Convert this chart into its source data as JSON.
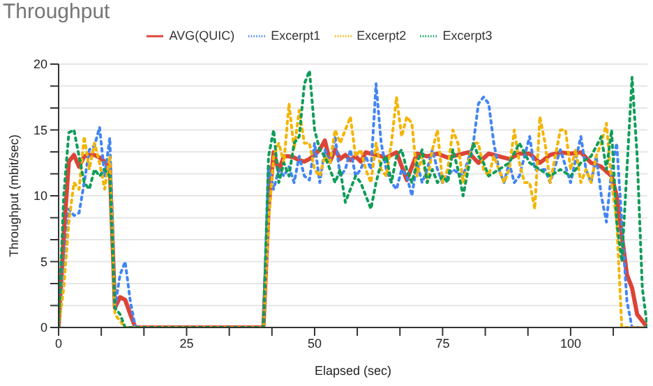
{
  "chart_data": {
    "type": "line",
    "title": "Throughput",
    "xlabel": "Elapsed (sec)",
    "ylabel": "Throughput (mbit/sec)",
    "xlim": [
      0,
      115
    ],
    "ylim": [
      0,
      20
    ],
    "xticks": [
      0,
      {
        "value": 8.333,
        "label": null
      },
      {
        "value": 16.667,
        "label": null
      },
      25,
      {
        "value": 33.333,
        "label": null
      },
      {
        "value": 41.667,
        "label": null
      },
      50,
      {
        "value": 58.333,
        "label": null
      },
      {
        "value": 66.667,
        "label": null
      },
      75,
      {
        "value": 83.333,
        "label": null
      },
      {
        "value": 91.667,
        "label": null
      },
      100,
      {
        "value": 108.333,
        "label": null
      }
    ],
    "yticks": [
      0,
      {
        "value": 1.667,
        "label": null
      },
      {
        "value": 3.333,
        "label": null
      },
      5,
      {
        "value": 6.667,
        "label": null
      },
      {
        "value": 8.333,
        "label": null
      },
      10,
      {
        "value": 11.667,
        "label": null
      },
      {
        "value": 13.333,
        "label": null
      },
      15,
      {
        "value": 16.667,
        "label": null
      },
      {
        "value": 18.333,
        "label": null
      },
      20
    ],
    "grid": "y",
    "legend": "top",
    "marker": "none",
    "series": [
      {
        "name": "AVG(QUIC)",
        "color": "#db4437",
        "line_style": "solid",
        "x": [
          0,
          1,
          2,
          3,
          4,
          5,
          6,
          7,
          8,
          9,
          10,
          11,
          12,
          13,
          14,
          15,
          40,
          41,
          42,
          43,
          44,
          45,
          46,
          47,
          48,
          49,
          50,
          51,
          52,
          53,
          54,
          55,
          56,
          57,
          58,
          59,
          60,
          62,
          64,
          66,
          68,
          70,
          72,
          74,
          76,
          78,
          80,
          82,
          84,
          86,
          88,
          90,
          92,
          94,
          96,
          98,
          100,
          102,
          104,
          106,
          108,
          109,
          110,
          111,
          112,
          113,
          114,
          115
        ],
        "values": [
          0,
          7,
          12.6,
          13.1,
          12.2,
          13,
          13.1,
          13.1,
          12.9,
          12.6,
          12.3,
          1.5,
          2.3,
          2.1,
          1,
          0,
          0,
          9,
          13.3,
          11.9,
          13,
          13,
          12.9,
          12.7,
          12.6,
          12.8,
          13.1,
          13.5,
          14.2,
          12.6,
          13.5,
          12.8,
          13.1,
          12.7,
          13,
          12.6,
          13.3,
          13.1,
          12.9,
          13.3,
          11.2,
          13.2,
          13,
          13.2,
          12.9,
          13.1,
          13.3,
          12.5,
          13.2,
          13,
          12.8,
          13.2,
          13.2,
          12.5,
          13.1,
          13.3,
          13.2,
          13.3,
          12.5,
          12.2,
          11.5,
          10,
          7,
          4,
          3,
          1,
          0.5,
          0
        ]
      },
      {
        "name": "Excerpt1",
        "color": "#4285f4",
        "line_style": "dotted",
        "x": [
          0,
          1,
          2,
          3,
          4,
          5,
          6,
          7,
          8,
          9,
          10,
          11,
          12,
          13,
          14,
          15,
          40,
          41,
          42,
          43,
          44,
          45,
          46,
          47,
          48,
          49,
          50,
          51,
          52,
          53,
          54,
          55,
          56,
          57,
          58,
          59,
          60,
          61,
          62,
          63,
          64,
          65,
          66,
          67,
          68,
          69,
          70,
          71,
          72,
          73,
          74,
          75,
          77,
          79,
          81,
          82,
          83,
          84,
          85,
          86,
          87,
          88,
          89,
          90,
          92,
          93,
          95,
          96,
          98,
          100,
          102,
          103,
          104,
          105,
          106,
          107,
          108,
          109,
          110,
          111,
          112,
          113,
          115
        ],
        "values": [
          0,
          4,
          9,
          8.5,
          8.7,
          11,
          13.5,
          13.8,
          15.2,
          11.5,
          14.4,
          1.5,
          4,
          5,
          2,
          0,
          0,
          12.3,
          10.5,
          12,
          11.5,
          12.2,
          11,
          13,
          11.5,
          11.2,
          14,
          11,
          13.5,
          12.5,
          14.5,
          11.5,
          12,
          13.5,
          11.5,
          12,
          13,
          12,
          18.5,
          14,
          12,
          11,
          10.5,
          12,
          11.5,
          10,
          12.5,
          11,
          12,
          13.5,
          12,
          11,
          12,
          11.5,
          14,
          17,
          17.5,
          17,
          14,
          12,
          11,
          12.5,
          11,
          11.5,
          14.5,
          12,
          12,
          11,
          13.5,
          11,
          14.5,
          12,
          11,
          13,
          10,
          8,
          12,
          14,
          8,
          2,
          0,
          0,
          0
        ]
      },
      {
        "name": "Excerpt2",
        "color": "#f4b400",
        "line_style": "dotted",
        "x": [
          0,
          1,
          2,
          3,
          4,
          5,
          6,
          7,
          8,
          9,
          10,
          11,
          12,
          13,
          15,
          40,
          41,
          42,
          43,
          44,
          45,
          46,
          47,
          48,
          49,
          50,
          51,
          52,
          53,
          54,
          55,
          56,
          57,
          58,
          59,
          60,
          61,
          62,
          63,
          64,
          65,
          66,
          67,
          68,
          69,
          70,
          71,
          72,
          73,
          74,
          75,
          76,
          77,
          78,
          79,
          80,
          81,
          82,
          83,
          84,
          85,
          87,
          88,
          89,
          90,
          91,
          92,
          93,
          94,
          95,
          96,
          97,
          98,
          99,
          100,
          101,
          102,
          103,
          104,
          105,
          106,
          107,
          108,
          109,
          110,
          111,
          112,
          115
        ],
        "values": [
          0,
          3,
          8,
          11,
          10.5,
          14.5,
          12,
          14,
          12.5,
          10.5,
          13,
          1,
          0.5,
          0,
          0,
          0,
          8,
          13,
          14,
          12.5,
          17,
          13.5,
          16.5,
          14,
          14,
          12,
          11.5,
          13,
          12.5,
          15,
          14,
          15,
          16,
          13,
          13.5,
          12,
          11,
          14,
          12,
          11.5,
          14,
          17.5,
          14.5,
          16,
          15.5,
          11.5,
          13,
          11,
          13.5,
          15,
          11,
          12,
          15,
          14,
          11,
          12.5,
          14,
          14,
          12,
          11.5,
          13,
          11,
          12,
          15,
          12.5,
          11,
          11,
          9,
          16,
          14,
          11,
          13,
          15,
          15,
          12,
          13.5,
          11,
          12,
          11,
          13,
          14,
          15.5,
          11,
          8,
          0,
          0,
          0,
          0
        ]
      },
      {
        "name": "Excerpt3",
        "color": "#0f9d58",
        "line_style": "dotted",
        "x": [
          0,
          1,
          2,
          3,
          4,
          5,
          6,
          7,
          8,
          9,
          10,
          11,
          12,
          13,
          15,
          40,
          41,
          42,
          43,
          44,
          45,
          46,
          47,
          48,
          49,
          50,
          51,
          52,
          53,
          54,
          55,
          56,
          57,
          58,
          59,
          60,
          61,
          62,
          63,
          64,
          65,
          66,
          67,
          68,
          69,
          70,
          71,
          72,
          73,
          74,
          75,
          76,
          77,
          78,
          79,
          80,
          81,
          82,
          83,
          84,
          86,
          88,
          90,
          92,
          94,
          96,
          98,
          100,
          102,
          104,
          106,
          107,
          108,
          109,
          110,
          111,
          112,
          113,
          114,
          115
        ],
        "values": [
          0,
          10,
          14.8,
          15,
          13,
          11,
          10.5,
          12,
          11.5,
          12,
          11.5,
          1.5,
          1,
          0,
          0,
          0,
          13,
          15,
          11,
          12.5,
          11.5,
          14,
          14.5,
          18.5,
          19.5,
          15,
          13.5,
          13,
          12,
          11,
          12,
          9.5,
          10.5,
          11.5,
          11,
          10,
          9,
          11,
          12.5,
          13,
          11,
          13,
          13.5,
          12,
          11,
          12.5,
          13.5,
          11,
          12,
          11,
          11.5,
          11,
          13.5,
          12,
          10,
          12,
          14,
          13,
          12.5,
          11.5,
          12,
          12.5,
          14,
          12.5,
          12,
          11.5,
          12,
          11.5,
          12.5,
          13,
          14.5,
          12,
          15,
          8,
          5,
          12,
          19,
          13,
          3,
          0
        ]
      }
    ]
  }
}
